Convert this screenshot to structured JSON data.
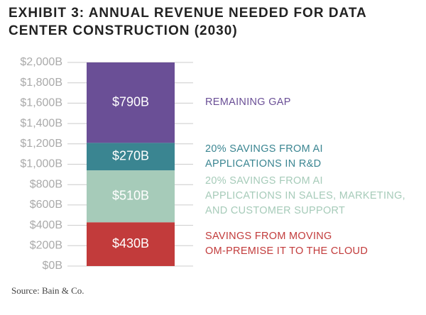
{
  "chart_data": {
    "type": "stacked_bar",
    "title": "EXHIBIT 3: ANNUAL REVENUE NEEDED FOR DATA\nCENTER CONSTRUCTION (2030)",
    "source": "Source: Bain & Co.",
    "categories": [
      null
    ],
    "series": [
      {
        "name": "SAVINGS FROM MOVING\nOM-PREMISE IT TO THE CLOUD",
        "color": "#c23b3b",
        "values": [
          430
        ],
        "value_labels": [
          "$430B"
        ]
      },
      {
        "name": "20% SAVINGS FROM AI\nAPPLICATIONS IN SALES, MARKETING,\nAND CUSTOMER SUPPORT",
        "color": "#a6cbb9",
        "values": [
          510
        ],
        "value_labels": [
          "$510B"
        ]
      },
      {
        "name": "20% SAVINGS FROM AI\nAPPLICATIONS IN R&D",
        "color": "#3a8591",
        "values": [
          270
        ],
        "value_labels": [
          "$270B"
        ]
      },
      {
        "name": "REMAINING GAP",
        "color": "#6a4f96",
        "values": [
          790
        ],
        "value_labels": [
          "$790B"
        ]
      }
    ],
    "ylim": [
      0,
      2000
    ],
    "yticks": [
      {
        "value": 0,
        "label": "$0B"
      },
      {
        "value": 200,
        "label": "$200B"
      },
      {
        "value": 400,
        "label": "$400B"
      },
      {
        "value": 600,
        "label": "$600B"
      },
      {
        "value": 800,
        "label": "$800B"
      },
      {
        "value": 1000,
        "label": "$1,000B"
      },
      {
        "value": 1200,
        "label": "$1,200B"
      },
      {
        "value": 1400,
        "label": "$1,400B"
      },
      {
        "value": 1600,
        "label": "$1,600B"
      },
      {
        "value": 1800,
        "label": "$1,800B"
      },
      {
        "value": 2000,
        "label": "$2,000B"
      }
    ],
    "grid": true
  }
}
